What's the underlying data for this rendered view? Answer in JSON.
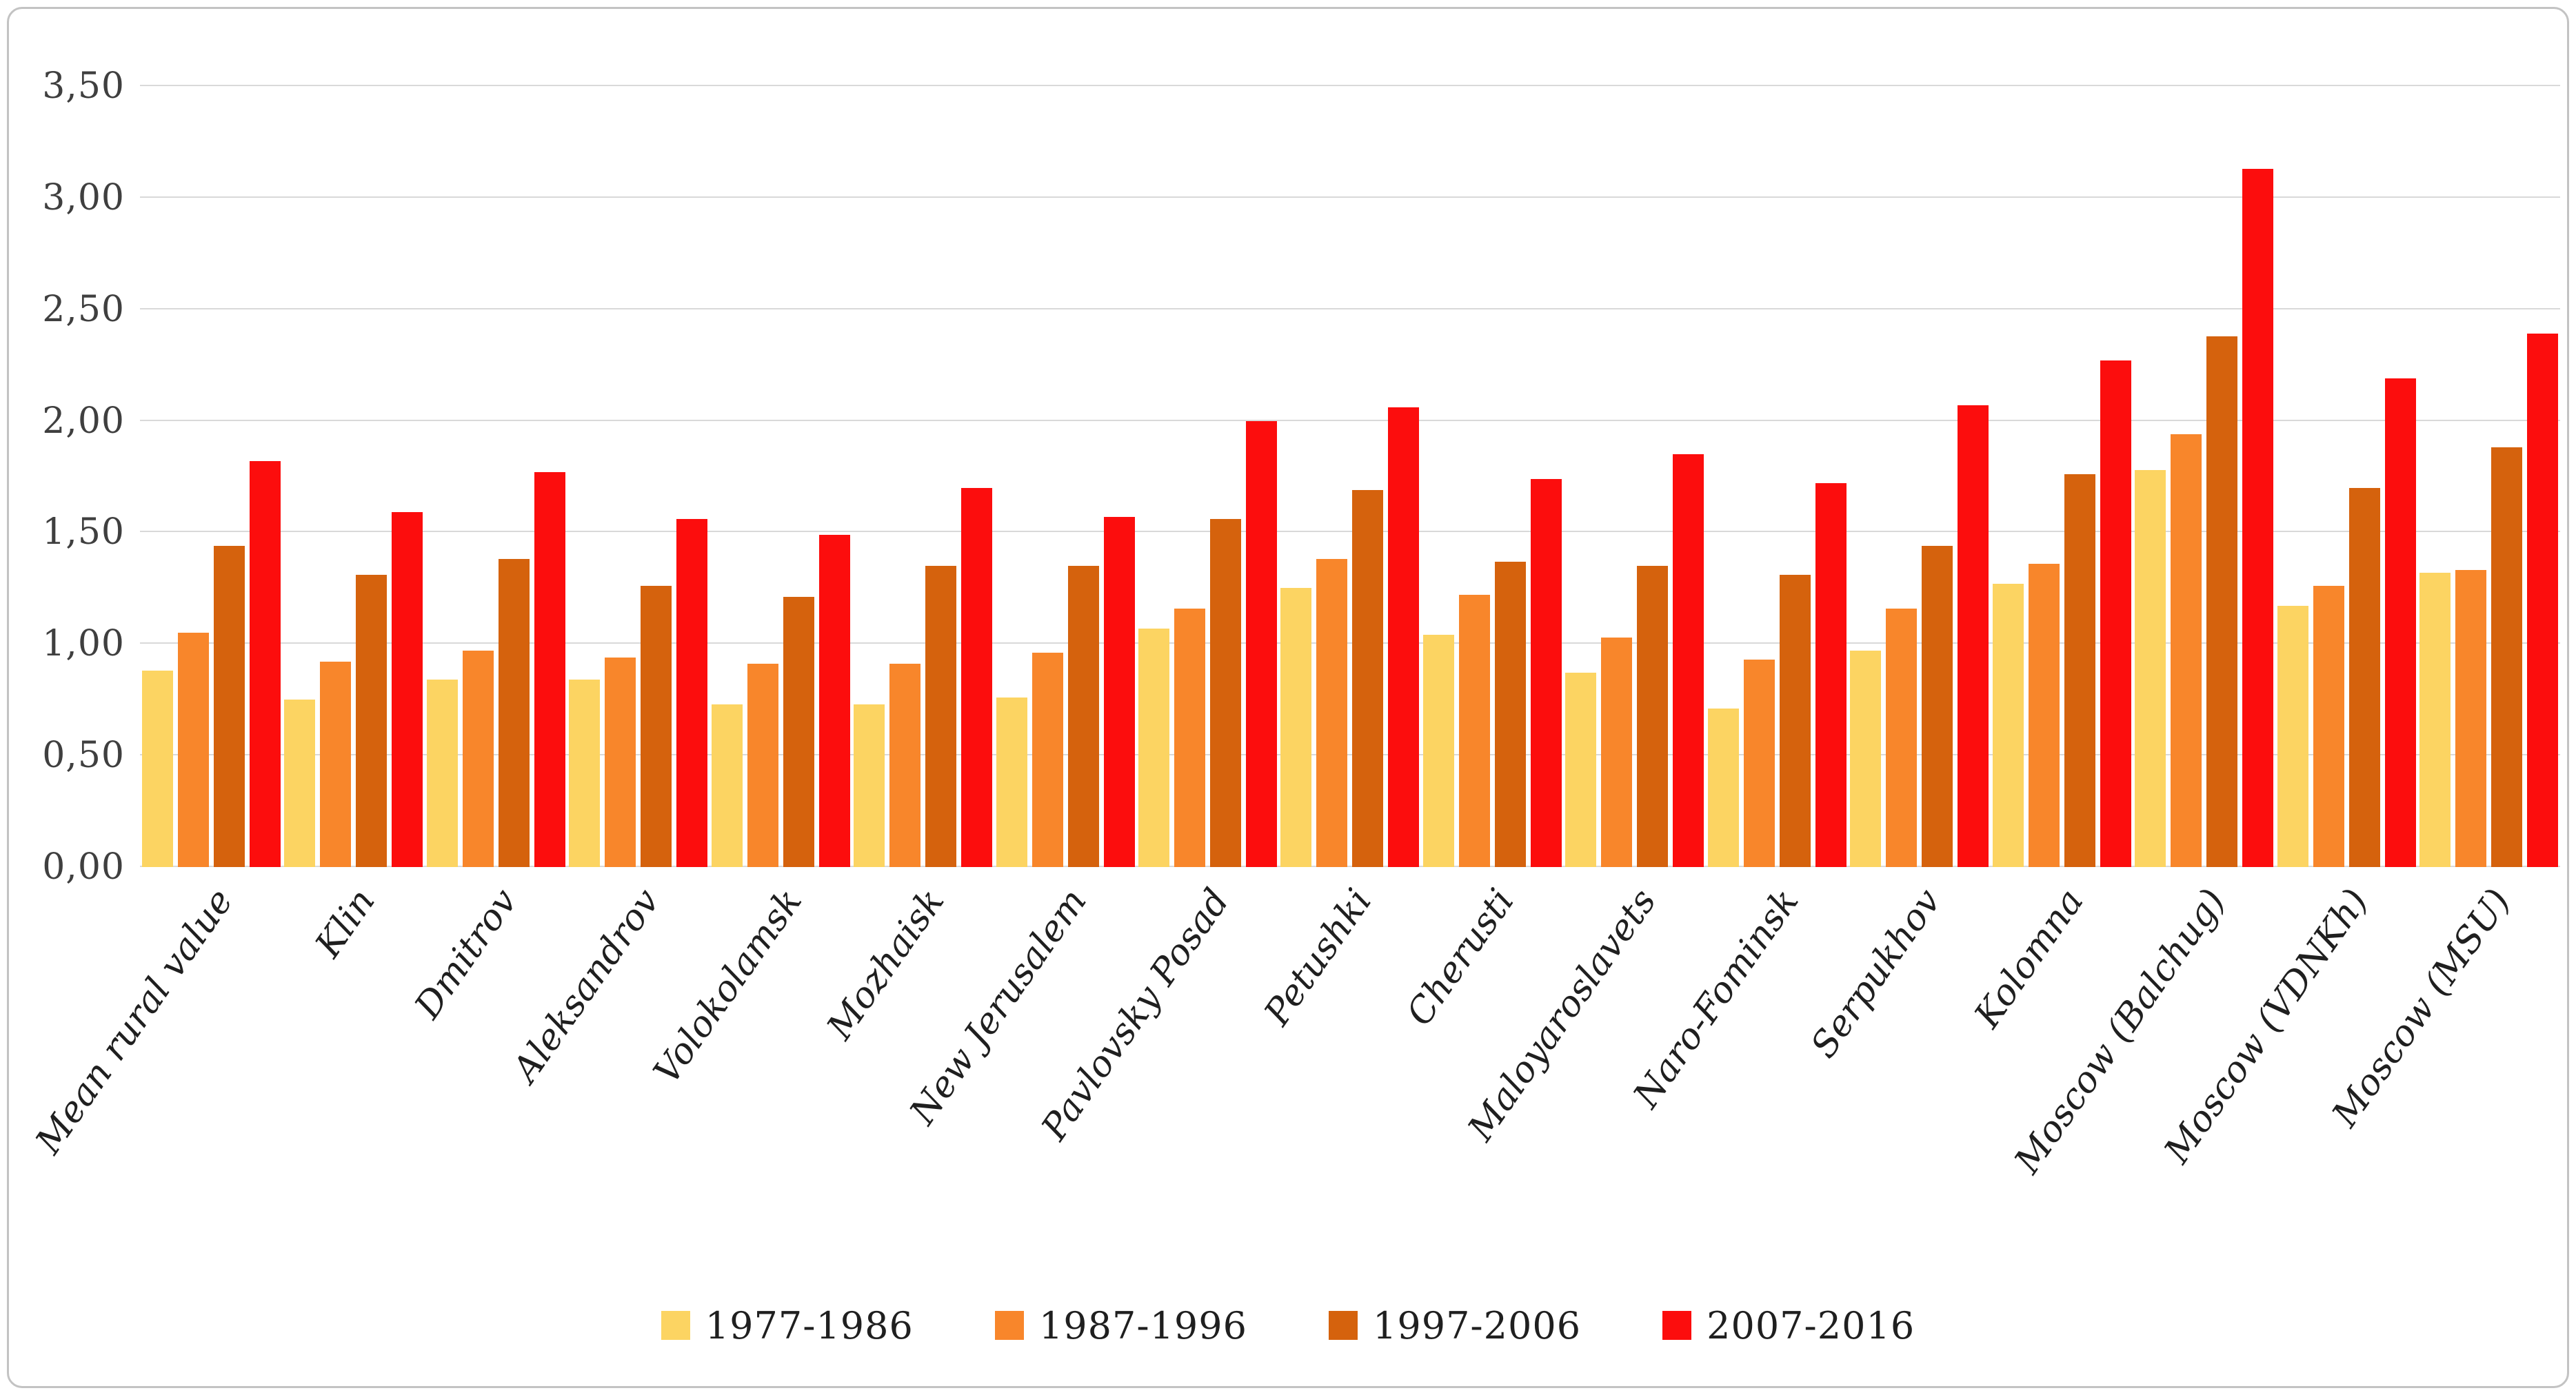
{
  "chart_data": {
    "type": "bar",
    "title": "",
    "xlabel": "",
    "ylabel": "",
    "categories": [
      "Mean rural value",
      "Klin",
      "Dmitrov",
      "Aleksandrov",
      "Volokolamsk",
      "Mozhaisk",
      "New Jerusalem",
      "Pavlovsky Posad",
      "Petushki",
      "Cherusti",
      "Maloyaroslavets",
      "Naro-Fominsk",
      "Serpukhov",
      "Kolomna",
      "Moscow (Balchug)",
      "Moscow (VDNKh)",
      "Moscow (MSU)"
    ],
    "series": [
      {
        "name": "1977-1986",
        "color": "#FCD462",
        "values": [
          0.88,
          0.75,
          0.84,
          0.84,
          0.73,
          0.73,
          0.76,
          1.07,
          1.25,
          1.04,
          0.87,
          0.71,
          0.97,
          1.27,
          1.78,
          1.17,
          1.32
        ]
      },
      {
        "name": "1987-1996",
        "color": "#F8862B",
        "values": [
          1.05,
          0.92,
          0.97,
          0.94,
          0.91,
          0.91,
          0.96,
          1.16,
          1.38,
          1.22,
          1.03,
          0.93,
          1.16,
          1.36,
          1.94,
          1.26,
          1.33
        ]
      },
      {
        "name": "1997-2006",
        "color": "#D5620D",
        "values": [
          1.44,
          1.31,
          1.38,
          1.26,
          1.21,
          1.35,
          1.35,
          1.56,
          1.69,
          1.37,
          1.35,
          1.31,
          1.44,
          1.76,
          2.38,
          1.7,
          1.88
        ]
      },
      {
        "name": "2007-2016",
        "color": "#FC0D0D",
        "values": [
          1.82,
          1.59,
          1.77,
          1.56,
          1.49,
          1.7,
          1.57,
          2.0,
          2.06,
          1.74,
          1.85,
          1.72,
          2.07,
          2.27,
          3.13,
          2.19,
          2.39
        ]
      }
    ],
    "ylim": [
      0,
      3.5
    ],
    "y_tick_step": 0.5,
    "y_tick_labels": [
      "0,00",
      "0,50",
      "1,00",
      "1,50",
      "2,00",
      "2,50",
      "3,00",
      "3,50"
    ],
    "grid": true,
    "gridline_color": "#d9d9d9",
    "legend_position": "bottom"
  }
}
